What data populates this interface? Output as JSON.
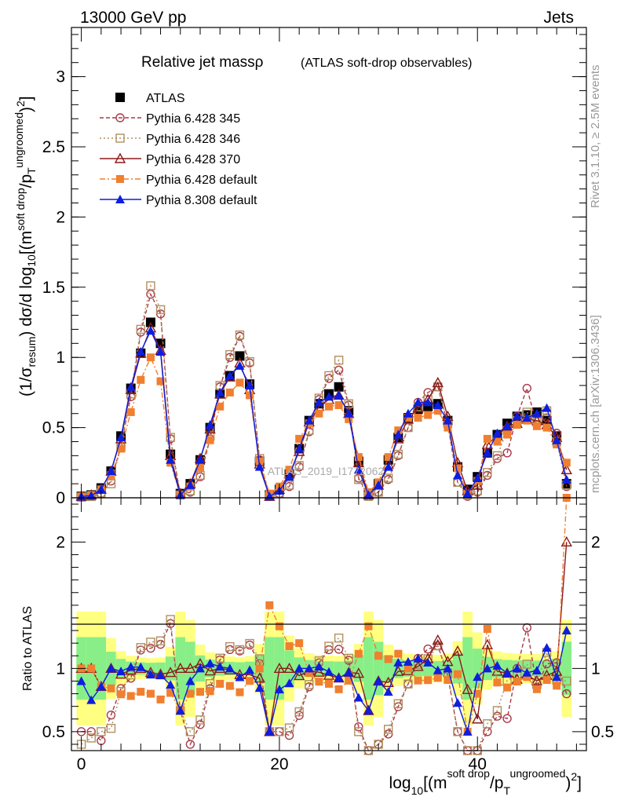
{
  "header": {
    "left": "13000 GeV pp",
    "right": "Jets",
    "side_top": "Rivet 3.1.10, ≥ 2.5M events",
    "side_bottom": "mcplots.cern.ch [arXiv:1306.3436]",
    "watermark": "ATLAS_2019_I1772062"
  },
  "chart_data": [
    {
      "type": "line",
      "title": "Relative jet massρ",
      "subtitle": "(ATLAS soft-drop observables)",
      "ylabel": "(1/σresum) dσ/d log10[(msoft drop/pTungroomed)2]",
      "xlim": [
        -1,
        51
      ],
      "ylim": [
        0,
        3.35
      ],
      "yticks": [
        "0",
        "0.5",
        "1",
        "1.5",
        "2",
        "2.5",
        "3"
      ],
      "x": [
        0,
        1,
        2,
        3,
        4,
        5,
        6,
        7,
        8,
        9,
        10,
        11,
        12,
        13,
        14,
        15,
        16,
        17,
        18,
        19,
        20,
        21,
        22,
        23,
        24,
        25,
        26,
        27,
        28,
        29,
        30,
        31,
        32,
        33,
        34,
        35,
        36,
        37,
        38,
        39,
        40,
        41,
        42,
        43,
        44,
        45,
        46,
        47,
        48,
        49
      ],
      "series": [
        {
          "name": "ATLAS",
          "color": "#000000",
          "marker": "square",
          "values": [
            0.01,
            0.02,
            0.07,
            0.19,
            0.44,
            0.78,
            1.03,
            1.25,
            1.1,
            0.31,
            0.03,
            0.1,
            0.27,
            0.5,
            0.74,
            0.87,
            1.01,
            0.81,
            0.26,
            0.02,
            0.06,
            0.17,
            0.35,
            0.55,
            0.67,
            0.74,
            0.79,
            0.62,
            0.26,
            0.03,
            0.1,
            0.27,
            0.43,
            0.57,
            0.63,
            0.65,
            0.67,
            0.55,
            0.22,
            0.06,
            0.15,
            0.32,
            0.45,
            0.53,
            0.58,
            0.59,
            0.61,
            0.55,
            0.44,
            0.1
          ]
        },
        {
          "name": "Pythia 6.428 345",
          "color": "#a83a48",
          "marker": "circle-open",
          "values": [
            0.005,
            0.01,
            0.03,
            0.12,
            0.37,
            0.72,
            1.18,
            1.45,
            1.31,
            0.42,
            0.02,
            0.04,
            0.15,
            0.42,
            0.79,
            1.0,
            1.15,
            0.96,
            0.27,
            0.01,
            0.03,
            0.08,
            0.22,
            0.47,
            0.7,
            0.85,
            0.91,
            0.66,
            0.14,
            0.01,
            0.04,
            0.13,
            0.3,
            0.5,
            0.68,
            0.75,
            0.79,
            0.52,
            0.11,
            0.01,
            0.04,
            0.16,
            0.28,
            0.32,
            0.58,
            0.78,
            0.52,
            0.57,
            0.46,
            0.08
          ]
        },
        {
          "name": "Pythia 6.428 346",
          "color": "#b09060",
          "marker": "square-open",
          "values": [
            0.004,
            0.009,
            0.035,
            0.1,
            0.36,
            0.74,
            1.2,
            1.51,
            1.34,
            0.43,
            0.02,
            0.05,
            0.16,
            0.44,
            0.8,
            1.02,
            1.16,
            0.97,
            0.28,
            0.01,
            0.03,
            0.09,
            0.23,
            0.48,
            0.71,
            0.87,
            0.98,
            0.67,
            0.13,
            0.01,
            0.04,
            0.14,
            0.31,
            0.5,
            0.65,
            0.7,
            0.79,
            0.53,
            0.11,
            0.02,
            0.05,
            0.18,
            0.3,
            0.48,
            0.55,
            0.61,
            0.54,
            0.62,
            0.4,
            0.09
          ]
        },
        {
          "name": "Pythia 6.428 370",
          "color": "#8b1a1a",
          "marker": "triangle-open",
          "values": [
            0.01,
            0.02,
            0.06,
            0.19,
            0.42,
            0.77,
            1.03,
            1.21,
            1.05,
            0.3,
            0.03,
            0.1,
            0.28,
            0.49,
            0.74,
            0.86,
            0.96,
            0.77,
            0.24,
            0.01,
            0.06,
            0.17,
            0.33,
            0.54,
            0.65,
            0.7,
            0.73,
            0.6,
            0.25,
            0.02,
            0.09,
            0.24,
            0.42,
            0.56,
            0.64,
            0.7,
            0.82,
            0.58,
            0.25,
            0.05,
            0.09,
            0.38,
            0.44,
            0.51,
            0.53,
            0.56,
            0.55,
            0.52,
            0.43,
            0.2
          ]
        },
        {
          "name": "Pythia 6.428 default",
          "color": "#f07f30",
          "marker": "square",
          "values": [
            0.01,
            0.02,
            0.06,
            0.16,
            0.35,
            0.61,
            0.84,
            1.0,
            0.83,
            0.25,
            0.02,
            0.08,
            0.22,
            0.41,
            0.65,
            0.75,
            0.82,
            0.73,
            0.26,
            0.03,
            0.08,
            0.2,
            0.42,
            0.53,
            0.6,
            0.65,
            0.66,
            0.56,
            0.29,
            0.04,
            0.11,
            0.29,
            0.48,
            0.57,
            0.57,
            0.59,
            0.62,
            0.5,
            0.21,
            0.03,
            0.12,
            0.42,
            0.4,
            0.45,
            0.52,
            0.55,
            0.51,
            0.5,
            0.38,
            0.25
          ]
        },
        {
          "name": "Pythia 8.308 default",
          "color": "#0d1ee0",
          "marker": "triangle",
          "values": [
            0.009,
            0.015,
            0.06,
            0.19,
            0.43,
            0.79,
            1.04,
            1.19,
            1.04,
            0.27,
            0.02,
            0.09,
            0.27,
            0.52,
            0.75,
            0.87,
            0.94,
            0.8,
            0.22,
            0.01,
            0.05,
            0.15,
            0.35,
            0.55,
            0.68,
            0.72,
            0.73,
            0.6,
            0.2,
            0.02,
            0.09,
            0.22,
            0.45,
            0.6,
            0.68,
            0.68,
            0.66,
            0.55,
            0.16,
            0.03,
            0.14,
            0.32,
            0.46,
            0.51,
            0.58,
            0.57,
            0.6,
            0.64,
            0.41,
            0.13
          ]
        }
      ]
    },
    {
      "type": "line",
      "ylabel": "Ratio to ATLAS",
      "xlabel": "log10[(msoft drop/pTungroomed)2]",
      "xlim": [
        -1,
        51
      ],
      "ylim": [
        0.35,
        2.35
      ],
      "xticks": [
        "0",
        "20",
        "40"
      ],
      "yticks": [
        "0.5",
        "1",
        "2"
      ],
      "reference": 1
    }
  ]
}
